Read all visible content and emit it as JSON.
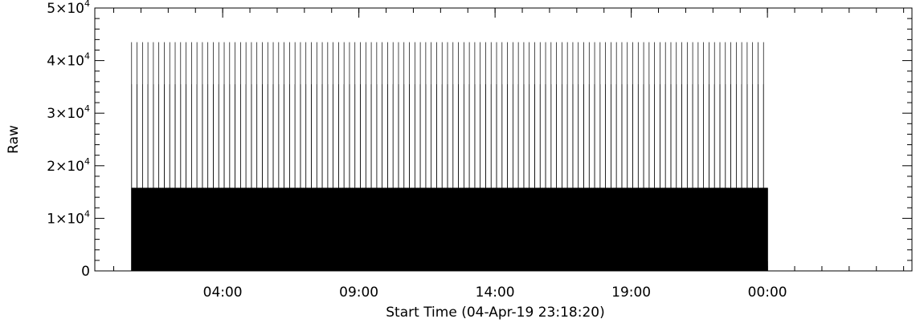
{
  "chart_data": {
    "type": "bar",
    "title": "",
    "xlabel": "Start Time (04-Apr-19 23:18:20)",
    "ylabel": "Raw",
    "x_tick_labels": [
      "04:00",
      "09:00",
      "14:00",
      "19:00",
      "00:00"
    ],
    "x_tick_offsets_hours": [
      4.6944,
      9.6944,
      14.6944,
      19.6944,
      24.6944
    ],
    "x_range_hours": [
      0,
      30.0
    ],
    "y_tick_values": [
      0,
      10000,
      20000,
      30000,
      40000,
      50000
    ],
    "y_tick_labels": [
      {
        "mant": "0",
        "exp": ""
      },
      {
        "mant": "1×10",
        "exp": "4"
      },
      {
        "mant": "2×10",
        "exp": "4"
      },
      {
        "mant": "3×10",
        "exp": "4"
      },
      {
        "mant": "4×10",
        "exp": "4"
      },
      {
        "mant": "5×10",
        "exp": "4"
      }
    ],
    "ylim": [
      0,
      50000
    ],
    "data_start_hours": 1.35,
    "data_end_hours": 24.7,
    "series": [
      {
        "values": [
          43500,
          35500,
          15800
        ],
        "period_hours": [
          0.2,
          0.2,
          0.05
        ]
      }
    ],
    "grid": false,
    "color": "#000000"
  }
}
